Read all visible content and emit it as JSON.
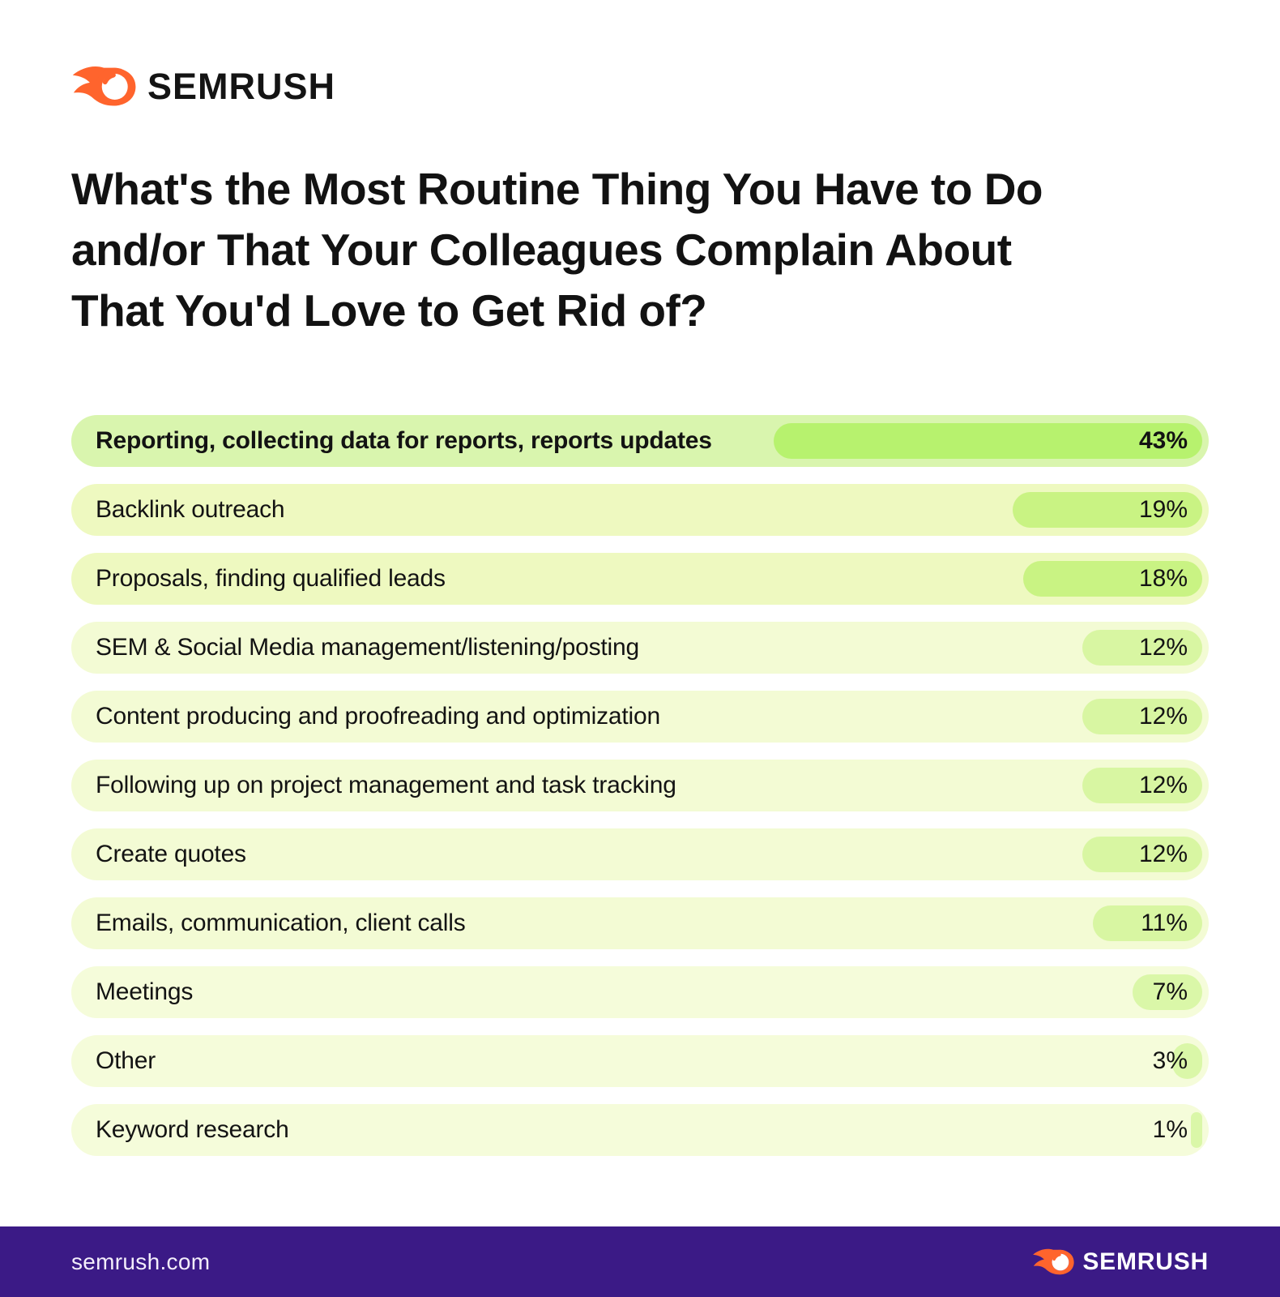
{
  "header": {
    "logo_text": "SEMRUSH"
  },
  "title_lines": [
    "What's the Most Routine Thing You Have to Do",
    "and/or That Your Colleagues Complain About",
    "That You'd Love to Get Rid of?"
  ],
  "chart_data": {
    "type": "bar",
    "orientation": "horizontal",
    "title": "What's the Most Routine Thing You Have to Do and/or That Your Colleagues Complain About That You'd Love to Get Rid of?",
    "unit": "%",
    "xlim": [
      0,
      43
    ],
    "grid": false,
    "legend": false,
    "emphasized_row": 0,
    "categories": [
      "Reporting, collecting data for reports, reports updates",
      "Backlink outreach",
      "Proposals, finding qualified leads",
      "SEM & Social Media management/listening/posting",
      "Content producing and proofreading and optimization",
      "Following up on project management and task tracking",
      "Create quotes",
      "Emails, communication, client calls",
      "Meetings",
      "Other",
      "Keyword research"
    ],
    "values": [
      43,
      19,
      18,
      12,
      12,
      12,
      12,
      11,
      7,
      3,
      1
    ],
    "value_labels": [
      "43%",
      "19%",
      "18%",
      "12%",
      "12%",
      "12%",
      "12%",
      "11%",
      "7%",
      "3%",
      "1%"
    ]
  },
  "colors": {
    "accent_orange": "#ff642d",
    "footer_purple": "#3b1a86",
    "title_text": "#121212",
    "row_tiers": [
      {
        "bg": "#d9f5ae",
        "bar": "#b7f26e"
      },
      {
        "bg": "#eef9c0",
        "bar": "#c9f383"
      },
      {
        "bg": "#f3fbd4",
        "bar": "#d8f6a2"
      },
      {
        "bg": "#f5fcda",
        "bar": "#daf7a8"
      }
    ],
    "tier_by_row": [
      0,
      1,
      1,
      2,
      2,
      2,
      2,
      2,
      3,
      3,
      3
    ]
  },
  "footer": {
    "site": "semrush.com",
    "logo_text": "SEMRUSH"
  }
}
